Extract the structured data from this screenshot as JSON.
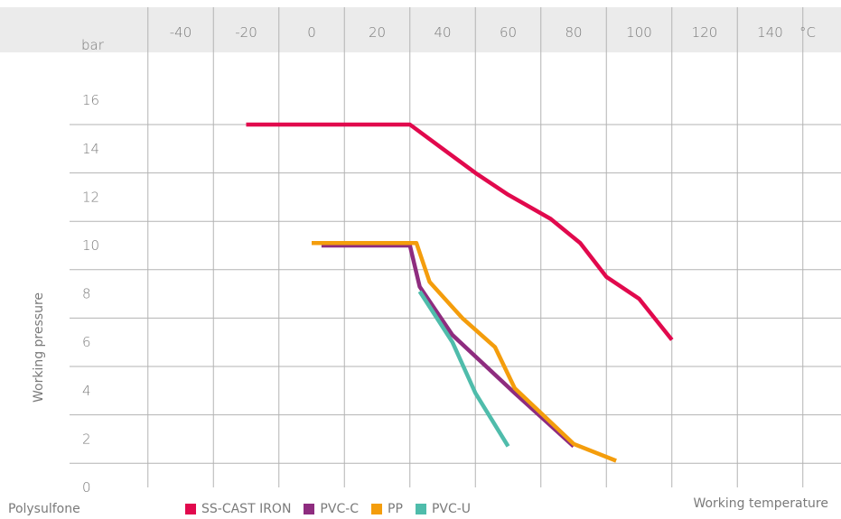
{
  "material": "Polysulfone",
  "chart_data": {
    "type": "line",
    "xlabel": "Working temperature",
    "ylabel": "Working pressure",
    "x_unit": "°C",
    "y_unit": "bar",
    "xlim": [
      -60,
      160
    ],
    "ylim": [
      -1,
      17
    ],
    "x_ticks": [
      "-40",
      "-20",
      "0",
      "20",
      "40",
      "60",
      "80",
      "100",
      "120",
      "140"
    ],
    "y_ticks": [
      "0",
      "2",
      "4",
      "6",
      "8",
      "10",
      "12",
      "14",
      "16"
    ],
    "grid": true,
    "legend_position": "bottom",
    "series": [
      {
        "name": "SS-CAST IRON",
        "color": "#e1094d",
        "points": [
          [
            -20,
            15
          ],
          [
            30,
            15
          ],
          [
            40,
            14
          ],
          [
            50,
            13
          ],
          [
            60,
            12.1
          ],
          [
            73,
            11.1
          ],
          [
            82,
            10.1
          ],
          [
            90,
            8.7
          ],
          [
            100,
            7.8
          ],
          [
            110,
            6.1
          ]
        ]
      },
      {
        "name": "PVC-C",
        "color": "#8e2c7f",
        "points": [
          [
            3,
            10
          ],
          [
            30,
            10
          ],
          [
            33,
            8.3
          ],
          [
            43,
            6.3
          ],
          [
            62,
            3.9
          ],
          [
            80,
            1.7
          ]
        ]
      },
      {
        "name": "PP",
        "color": "#f49d0c",
        "points": [
          [
            0,
            10.1
          ],
          [
            32,
            10.1
          ],
          [
            36,
            8.5
          ],
          [
            46,
            7
          ],
          [
            56,
            5.8
          ],
          [
            62,
            4.1
          ],
          [
            80,
            1.8
          ],
          [
            93,
            1.1
          ]
        ]
      },
      {
        "name": "PVC-U",
        "color": "#4fbcab",
        "points": [
          [
            33,
            8.1
          ],
          [
            43,
            6
          ],
          [
            50,
            3.9
          ],
          [
            60,
            1.7
          ]
        ]
      }
    ]
  }
}
